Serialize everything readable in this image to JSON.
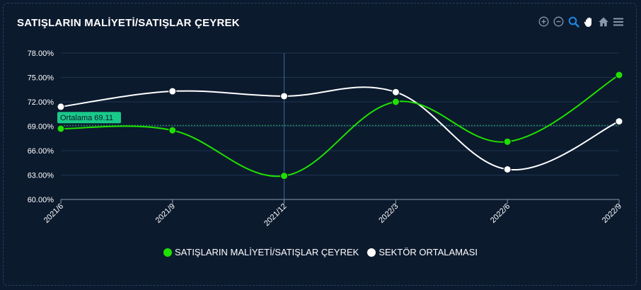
{
  "title": "SATIŞLARIN MALİYETİ/SATIŞLAR ÇEYREK",
  "toolbar": {
    "icons": [
      "zoom-in-icon",
      "zoom-out-icon",
      "zoom-selection-icon",
      "pan-icon",
      "reset-home-icon",
      "menu-icon"
    ]
  },
  "colors": {
    "series_company": "#1fe000",
    "series_sector": "#ffffff",
    "average_line": "#1fb56a",
    "average_label_bg": "#19c98a",
    "grid": "#1e3450",
    "crosshair": "#3a6d9a"
  },
  "chart_data": {
    "type": "line",
    "categories": [
      "2021/6",
      "2021/9",
      "2021/12",
      "2022/3",
      "2022/6",
      "2022/9"
    ],
    "series": [
      {
        "name": "SATIŞLARIN MALİYETİ/SATIŞLAR ÇEYREK",
        "values": [
          68.7,
          68.5,
          62.9,
          72.0,
          67.1,
          75.3
        ]
      },
      {
        "name": "SEKTÖR ORTALAMASI",
        "values": [
          71.4,
          73.3,
          72.7,
          73.2,
          63.7,
          69.6
        ]
      }
    ],
    "ylim": [
      60,
      78
    ],
    "yticks": [
      "60.00%",
      "63.00%",
      "66.00%",
      "69.00%",
      "72.00%",
      "75.00%",
      "78.00%"
    ],
    "ytick_values": [
      60,
      63,
      66,
      69,
      72,
      75,
      78
    ],
    "average": {
      "value": 69.11,
      "label": "Ortalama 69.11"
    },
    "crosshair_category": "2021/12",
    "grid": true,
    "legend_position": "bottom"
  }
}
